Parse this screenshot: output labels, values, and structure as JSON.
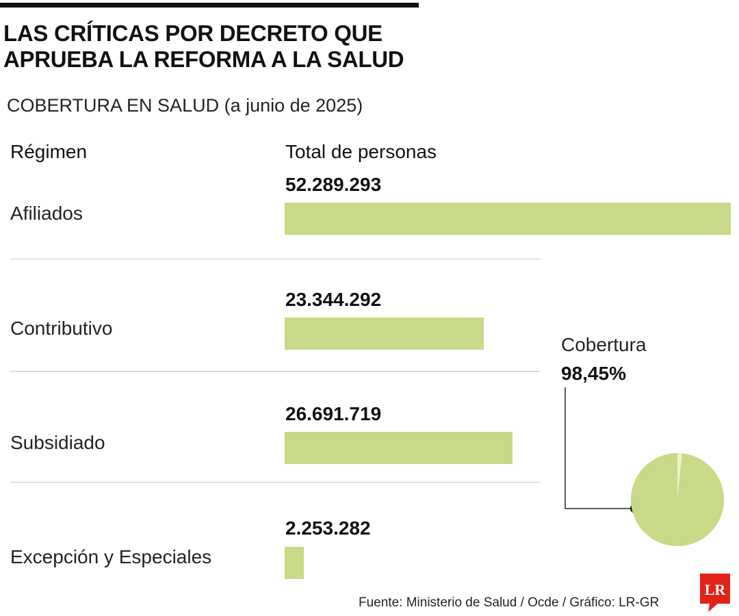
{
  "headline": "LAS CRÍTICAS POR DECRETO QUE APRUEBA LA REFORMA A LA SALUD",
  "subtitle": "COBERTURA EN SALUD (a junio de 2025)",
  "column_headers": {
    "category": "Régimen",
    "value": "Total de personas"
  },
  "coverage": {
    "label": "Cobertura",
    "value_text": "98,45%",
    "percent": 98.45
  },
  "source": "Fuente: Ministerio de Salud / Ocde / Gráfico: LR-GR",
  "logo_text": "LR",
  "colors": {
    "bar": "#c8d987",
    "pie": "#c8d987",
    "pie_rest": "#eef1cf",
    "logo": "#e2231a"
  },
  "chart_data": [
    {
      "type": "bar",
      "orientation": "horizontal",
      "title": "COBERTURA EN SALUD (a junio de 2025)",
      "xlabel": "Total de personas",
      "ylabel": "Régimen",
      "categories": [
        "Afiliados",
        "Contributivo",
        "Subsidiado",
        "Excepción y Especiales"
      ],
      "values": [
        52289293,
        23344292,
        26691719,
        2253282
      ],
      "value_labels": [
        "52.289.293",
        "23.344.292",
        "26.691.719",
        "2.253.282"
      ],
      "xlim": [
        0,
        52289293
      ],
      "grid": false
    },
    {
      "type": "pie",
      "title": "Cobertura",
      "categories": [
        "Cobertura",
        ""
      ],
      "values": [
        98.45,
        1.55
      ]
    }
  ]
}
